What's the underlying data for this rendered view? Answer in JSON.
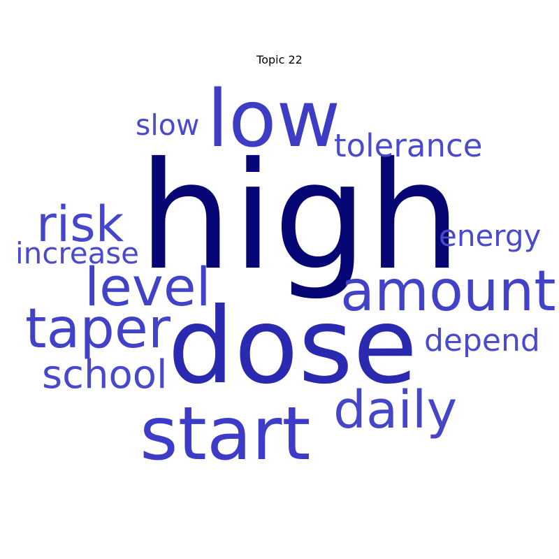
{
  "chart_data": {
    "type": "wordcloud",
    "title": "Topic 22",
    "words": [
      {
        "text": "high",
        "weight": 1.0,
        "color": "#050573"
      },
      {
        "text": "dose",
        "weight": 0.78,
        "color": "#2a2ab0"
      },
      {
        "text": "low",
        "weight": 0.58,
        "color": "#3c3cc4"
      },
      {
        "text": "start",
        "weight": 0.55,
        "color": "#3c3cc8"
      },
      {
        "text": "amount",
        "weight": 0.44,
        "color": "#4242c8"
      },
      {
        "text": "taper",
        "weight": 0.43,
        "color": "#4242c8"
      },
      {
        "text": "level",
        "weight": 0.4,
        "color": "#4242c8"
      },
      {
        "text": "daily",
        "weight": 0.4,
        "color": "#4545c8"
      },
      {
        "text": "risk",
        "weight": 0.38,
        "color": "#4646cc"
      },
      {
        "text": "school",
        "weight": 0.3,
        "color": "#4848cc"
      },
      {
        "text": "tolerance",
        "weight": 0.26,
        "color": "#4a4acc"
      },
      {
        "text": "depend",
        "weight": 0.26,
        "color": "#4a4acc"
      },
      {
        "text": "energy",
        "weight": 0.25,
        "color": "#4a4acc"
      },
      {
        "text": "slow",
        "weight": 0.24,
        "color": "#4a4acc"
      },
      {
        "text": "increase",
        "weight": 0.24,
        "color": "#4a4acc"
      }
    ]
  }
}
